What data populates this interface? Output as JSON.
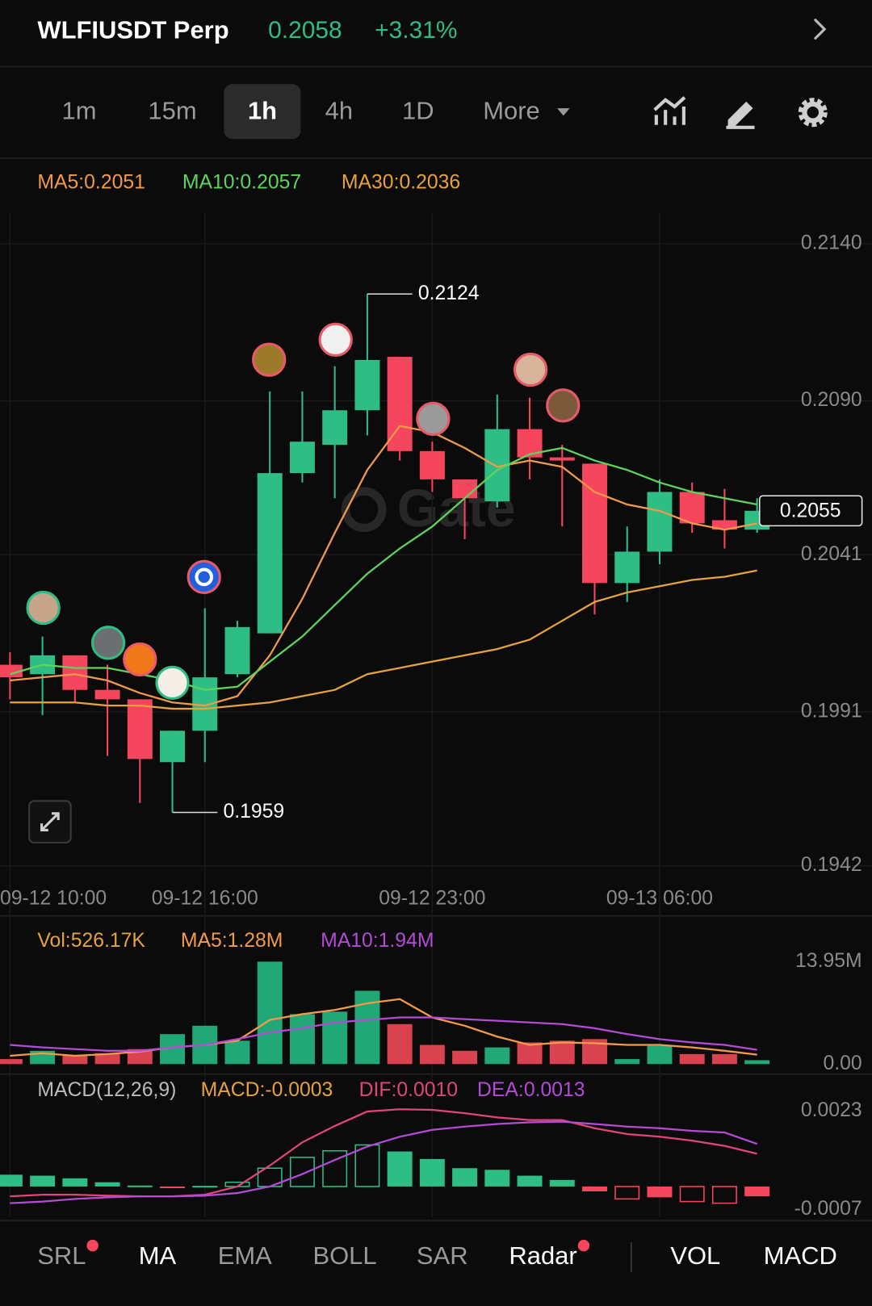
{
  "header": {
    "symbol": "WLFIUSDT Perp",
    "price": "0.2058",
    "change": "+3.31%"
  },
  "timeframes": {
    "items": [
      "1m",
      "15m",
      "1h",
      "4h",
      "1D"
    ],
    "selected_index": 2,
    "more": "More"
  },
  "watermark": "Gate",
  "chart_data": [
    {
      "type": "candlestick",
      "categories": [
        "09-12 10:00",
        null,
        null,
        null,
        null,
        null,
        "09-12 16:00",
        null,
        null,
        null,
        null,
        null,
        null,
        "09-12 23:00",
        null,
        null,
        null,
        null,
        null,
        null,
        "09-13 06:00",
        null,
        null,
        null
      ],
      "open": [
        0.2006,
        0.2003,
        0.2009,
        0.1998,
        0.1995,
        0.1975,
        0.1985,
        0.2003,
        0.2016,
        0.2067,
        0.2076,
        0.2087,
        0.2104,
        0.2074,
        0.2065,
        0.2058,
        0.2081,
        0.2072,
        0.207,
        0.2032,
        0.2042,
        0.2061,
        0.2052,
        0.2049
      ],
      "high": [
        0.201,
        0.2015,
        0.2009,
        0.2006,
        0.1995,
        0.1985,
        0.2024,
        0.202,
        0.2093,
        0.2093,
        0.2101,
        0.2124,
        0.2104,
        0.2077,
        0.2065,
        0.2092,
        0.2091,
        0.2076,
        0.207,
        0.205,
        0.2065,
        0.2064,
        0.2062,
        0.2059
      ],
      "low": [
        0.1995,
        0.199,
        0.1994,
        0.1977,
        0.1962,
        0.1959,
        0.1975,
        0.2002,
        0.2016,
        0.2064,
        0.2059,
        0.2079,
        0.2071,
        0.2061,
        0.2046,
        0.2056,
        0.2065,
        0.205,
        0.2022,
        0.2026,
        0.2038,
        0.2048,
        0.2043,
        0.2048
      ],
      "close": [
        0.2002,
        0.2009,
        0.1998,
        0.1995,
        0.1976,
        0.1985,
        0.2002,
        0.2018,
        0.2067,
        0.2077,
        0.2087,
        0.2103,
        0.2074,
        0.2065,
        0.2059,
        0.2081,
        0.2072,
        0.2071,
        0.2032,
        0.2042,
        0.2061,
        0.2051,
        0.2049,
        0.2055
      ],
      "up_color": "#2ebd85",
      "down_color": "#f6465d",
      "series": [
        {
          "label": "MA5:0.2051",
          "color": "#f29a4a",
          "values": [
            0.2001,
            0.2002,
            0.2003,
            0.2001,
            0.1997,
            0.1994,
            0.1993,
            0.1996,
            0.2009,
            0.2027,
            0.2048,
            0.2068,
            0.2082,
            0.208,
            0.2075,
            0.2069,
            0.2071,
            0.2069,
            0.2061,
            0.2057,
            0.2055,
            0.2051,
            0.2049,
            0.2051
          ]
        },
        {
          "label": "MA10:0.2057",
          "color": "#5ed35e",
          "values": [
            0.2003,
            0.2006,
            0.2005,
            0.2005,
            0.2003,
            0.2001,
            0.1998,
            0.1999,
            0.2007,
            0.2015,
            0.2025,
            0.2035,
            0.2043,
            0.205,
            0.2059,
            0.2068,
            0.2073,
            0.2075,
            0.2071,
            0.2068,
            0.2064,
            0.2061,
            0.2059,
            0.2057
          ]
        },
        {
          "label": "MA30:0.2036",
          "color": "#e6a23c",
          "values": [
            0.1994,
            0.1994,
            0.1994,
            0.1993,
            0.1993,
            0.1992,
            0.1992,
            0.1993,
            0.1994,
            0.1996,
            0.1998,
            0.2003,
            0.2005,
            0.2007,
            0.2009,
            0.2011,
            0.2014,
            0.202,
            0.2026,
            0.2029,
            0.2031,
            0.2033,
            0.2034,
            0.2036
          ]
        }
      ],
      "max_label": "0.2124",
      "min_label": "0.1959",
      "last_price_label": "0.2055",
      "ylim": [
        0.1938,
        0.215
      ],
      "yticks": [
        {
          "value": 0.214,
          "label": "0.2140"
        },
        {
          "value": 0.209,
          "label": "0.2090"
        },
        0.2041,
        0.1991,
        0.1942
      ],
      "grid": true
    },
    {
      "type": "bar",
      "current_label": "Vol:526.17K",
      "label_color": "#e6a23c",
      "values": [
        0.68,
        1.81,
        1.13,
        1.47,
        2.04,
        4.08,
        5.22,
        3.18,
        13.95,
        6.8,
        7.14,
        9.98,
        5.44,
        2.61,
        1.81,
        2.27,
        2.95,
        3.18,
        3.4,
        0.68,
        2.49,
        1.36,
        1.36,
        0.52617
      ],
      "up_color": "#22a877",
      "down_color": "#d8434f",
      "series": [
        {
          "label": "MA5:1.28M",
          "color": "#f29a4a",
          "values": [
            1.13,
            1.47,
            1.13,
            1.36,
            1.7,
            2.27,
            2.61,
            3.18,
            6.01,
            6.8,
            7.37,
            8.28,
            8.85,
            6.35,
            5.22,
            3.74,
            2.61,
            2.95,
            2.84,
            2.61,
            2.61,
            2.27,
            1.81,
            1.28
          ]
        },
        {
          "label": "MA10:1.94M",
          "color": "#b44ad6",
          "values": [
            2.61,
            2.27,
            2.04,
            1.81,
            1.81,
            2.27,
            2.61,
            3.4,
            4.31,
            4.88,
            5.67,
            6.01,
            6.35,
            6.35,
            6.12,
            5.9,
            5.67,
            5.44,
            4.88,
            4.08,
            3.4,
            2.95,
            2.61,
            1.94
          ]
        }
      ],
      "ylim": [
        0,
        15.08
      ],
      "yticks": [
        {
          "value": 13.95,
          "label": "13.95M"
        },
        {
          "value": 0,
          "label": "0.00"
        }
      ],
      "grid": false
    },
    {
      "type": "macd",
      "title": "MACD(12,26,9)",
      "current_label": "MACD:-0.0003",
      "label_color": "#e6a23c",
      "values": [
        0.00036,
        0.00033,
        0.00025,
        0.00013,
        3e-05,
        -2e-05,
        2e-05,
        0.00013,
        0.00056,
        0.00089,
        0.00109,
        0.00127,
        0.00107,
        0.00084,
        0.00056,
        0.00051,
        0.00033,
        0.0002,
        -0.00015,
        -0.00038,
        -0.00033,
        -0.00046,
        -0.00051,
        -0.0003
      ],
      "up_color": "#2ebd85",
      "down_color": "#f6465d",
      "series": [
        {
          "label": "DIF:0.0010",
          "color": "#e0457b",
          "values": [
            -0.0003,
            -0.00025,
            -0.00025,
            -0.00028,
            -0.0003,
            -0.0003,
            -0.00025,
            0,
            0.00064,
            0.00135,
            0.00185,
            0.00229,
            0.00236,
            0.00234,
            0.00224,
            0.00211,
            0.00203,
            0.00203,
            0.00178,
            0.0016,
            0.00152,
            0.0014,
            0.00124,
            0.001
          ]
        },
        {
          "label": "DEA:0.0013",
          "color": "#b44ad6",
          "values": [
            -0.00051,
            -0.00046,
            -0.00038,
            -0.00033,
            -0.0003,
            -0.0003,
            -0.00028,
            -0.0002,
            0,
            0.00038,
            0.00081,
            0.00122,
            0.00152,
            0.00173,
            0.00183,
            0.00191,
            0.00196,
            0.00198,
            0.00191,
            0.00183,
            0.00178,
            0.0017,
            0.00165,
            0.0013
          ]
        }
      ],
      "ylim": [
        -0.00094,
        0.00262
      ],
      "yticks": [
        0.0023,
        -0.0007
      ],
      "grid": false
    }
  ],
  "indicator_tabs": [
    {
      "label": "SRL",
      "active": false,
      "dot": true
    },
    {
      "label": "MA",
      "active": true,
      "dot": false
    },
    {
      "label": "EMA",
      "active": false,
      "dot": false
    },
    {
      "label": "BOLL",
      "active": false,
      "dot": false
    },
    {
      "label": "SAR",
      "active": false,
      "dot": false
    },
    {
      "label": "Radar",
      "active": true,
      "dot": true
    }
  ],
  "panel_tabs": [
    {
      "label": "VOL",
      "active": true,
      "dot": false
    },
    {
      "label": "MACD",
      "active": true,
      "dot": false
    }
  ]
}
